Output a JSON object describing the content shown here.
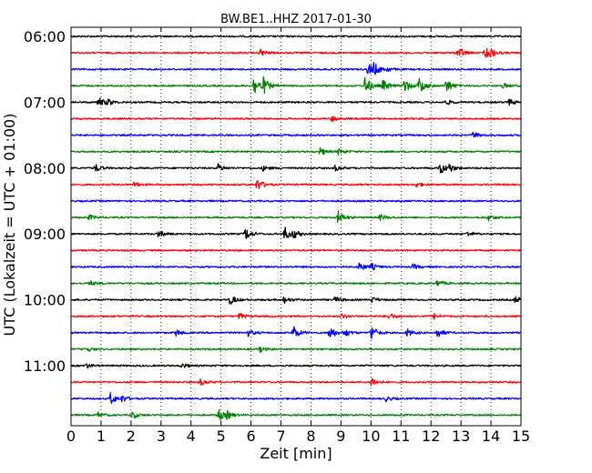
{
  "chart_data": {
    "type": "line",
    "title": "BW.BE1..HHZ 2017-01-30",
    "xlabel": "Zeit  [min]",
    "ylabel": "UTC (Lokalzeit = UTC + 01:00)",
    "xlim": [
      0,
      15
    ],
    "x_ticks": [
      "0",
      "1",
      "2",
      "3",
      "4",
      "5",
      "6",
      "7",
      "8",
      "9",
      "10",
      "11",
      "12",
      "13",
      "14",
      "15"
    ],
    "y_tick_labels": [
      "06:00",
      "07:00",
      "08:00",
      "09:00",
      "10:00",
      "11:00"
    ],
    "grid": {
      "vertical_dotted": true
    },
    "colors": [
      "#000000",
      "#ff0000",
      "#0000ff",
      "#008000"
    ],
    "traces": [
      {
        "start": "06:00",
        "events": []
      },
      {
        "start": "06:15",
        "events": [
          [
            6.3,
            0.6
          ],
          [
            12.9,
            1.0
          ],
          [
            13.8,
            0.9
          ],
          [
            14.0,
            0.5
          ]
        ]
      },
      {
        "start": "06:30",
        "events": [
          [
            9.9,
            1.0
          ],
          [
            10.1,
            0.8
          ],
          [
            10.5,
            0.4
          ]
        ]
      },
      {
        "start": "06:45",
        "events": [
          [
            6.1,
            1.6
          ],
          [
            6.4,
            1.2
          ],
          [
            9.8,
            1.5
          ],
          [
            10.4,
            0.9
          ],
          [
            11.1,
            1.2
          ],
          [
            11.6,
            1.4
          ],
          [
            12.5,
            1.2
          ],
          [
            14.4,
            0.4
          ]
        ]
      },
      {
        "start": "07:00",
        "events": [
          [
            0.9,
            0.8
          ],
          [
            1.2,
            0.5
          ],
          [
            12.5,
            0.4
          ],
          [
            14.6,
            0.5
          ]
        ]
      },
      {
        "start": "07:15",
        "events": [
          [
            8.7,
            0.5
          ]
        ]
      },
      {
        "start": "07:30",
        "events": [
          [
            13.4,
            0.5
          ]
        ]
      },
      {
        "start": "07:45",
        "events": [
          [
            8.3,
            0.6
          ],
          [
            8.9,
            0.5
          ]
        ]
      },
      {
        "start": "08:00",
        "events": [
          [
            0.8,
            0.6
          ],
          [
            4.9,
            0.6
          ],
          [
            6.4,
            0.4
          ],
          [
            8.8,
            0.4
          ],
          [
            12.3,
            1.0
          ],
          [
            12.6,
            0.6
          ]
        ]
      },
      {
        "start": "08:15",
        "events": [
          [
            2.1,
            0.4
          ],
          [
            6.2,
            1.0
          ],
          [
            11.5,
            0.4
          ]
        ]
      },
      {
        "start": "08:30",
        "events": []
      },
      {
        "start": "08:45",
        "events": [
          [
            0.6,
            0.4
          ],
          [
            8.9,
            1.0
          ],
          [
            10.3,
            0.5
          ],
          [
            13.9,
            0.5
          ]
        ]
      },
      {
        "start": "09:00",
        "events": [
          [
            2.9,
            0.6
          ],
          [
            5.8,
            1.0
          ],
          [
            7.1,
            1.2
          ],
          [
            7.4,
            0.6
          ],
          [
            13.2,
            0.4
          ]
        ]
      },
      {
        "start": "09:15",
        "events": []
      },
      {
        "start": "09:30",
        "events": [
          [
            9.6,
            0.7
          ],
          [
            10.0,
            0.5
          ],
          [
            11.4,
            0.4
          ]
        ]
      },
      {
        "start": "09:45",
        "events": [
          [
            0.6,
            0.4
          ],
          [
            12.2,
            0.5
          ]
        ]
      },
      {
        "start": "10:00",
        "events": [
          [
            5.3,
            0.8
          ],
          [
            7.1,
            0.5
          ],
          [
            8.8,
            0.5
          ],
          [
            10.0,
            0.5
          ],
          [
            14.8,
            0.5
          ]
        ]
      },
      {
        "start": "10:15",
        "events": [
          [
            5.6,
            0.5
          ],
          [
            9.0,
            0.4
          ],
          [
            10.6,
            0.5
          ],
          [
            12.1,
            0.4
          ]
        ]
      },
      {
        "start": "10:30",
        "events": [
          [
            3.5,
            0.5
          ],
          [
            5.9,
            0.5
          ],
          [
            7.4,
            1.1
          ],
          [
            8.6,
            1.2
          ],
          [
            9.1,
            0.7
          ],
          [
            10.0,
            1.2
          ],
          [
            11.2,
            0.6
          ],
          [
            12.2,
            0.8
          ]
        ]
      },
      {
        "start": "10:45",
        "events": [
          [
            0.5,
            0.4
          ],
          [
            6.3,
            0.4
          ]
        ]
      },
      {
        "start": "11:00",
        "events": [
          [
            0.5,
            0.4
          ],
          [
            3.7,
            0.4
          ]
        ]
      },
      {
        "start": "11:15",
        "events": [
          [
            4.3,
            0.5
          ],
          [
            10.0,
            0.8
          ]
        ]
      },
      {
        "start": "11:30",
        "events": [
          [
            1.3,
            1.0
          ],
          [
            1.7,
            0.5
          ],
          [
            10.5,
            0.4
          ]
        ]
      },
      {
        "start": "11:45",
        "events": [
          [
            0.9,
            0.4
          ],
          [
            2.0,
            0.7
          ],
          [
            4.9,
            1.0
          ],
          [
            5.2,
            0.5
          ]
        ]
      }
    ]
  }
}
